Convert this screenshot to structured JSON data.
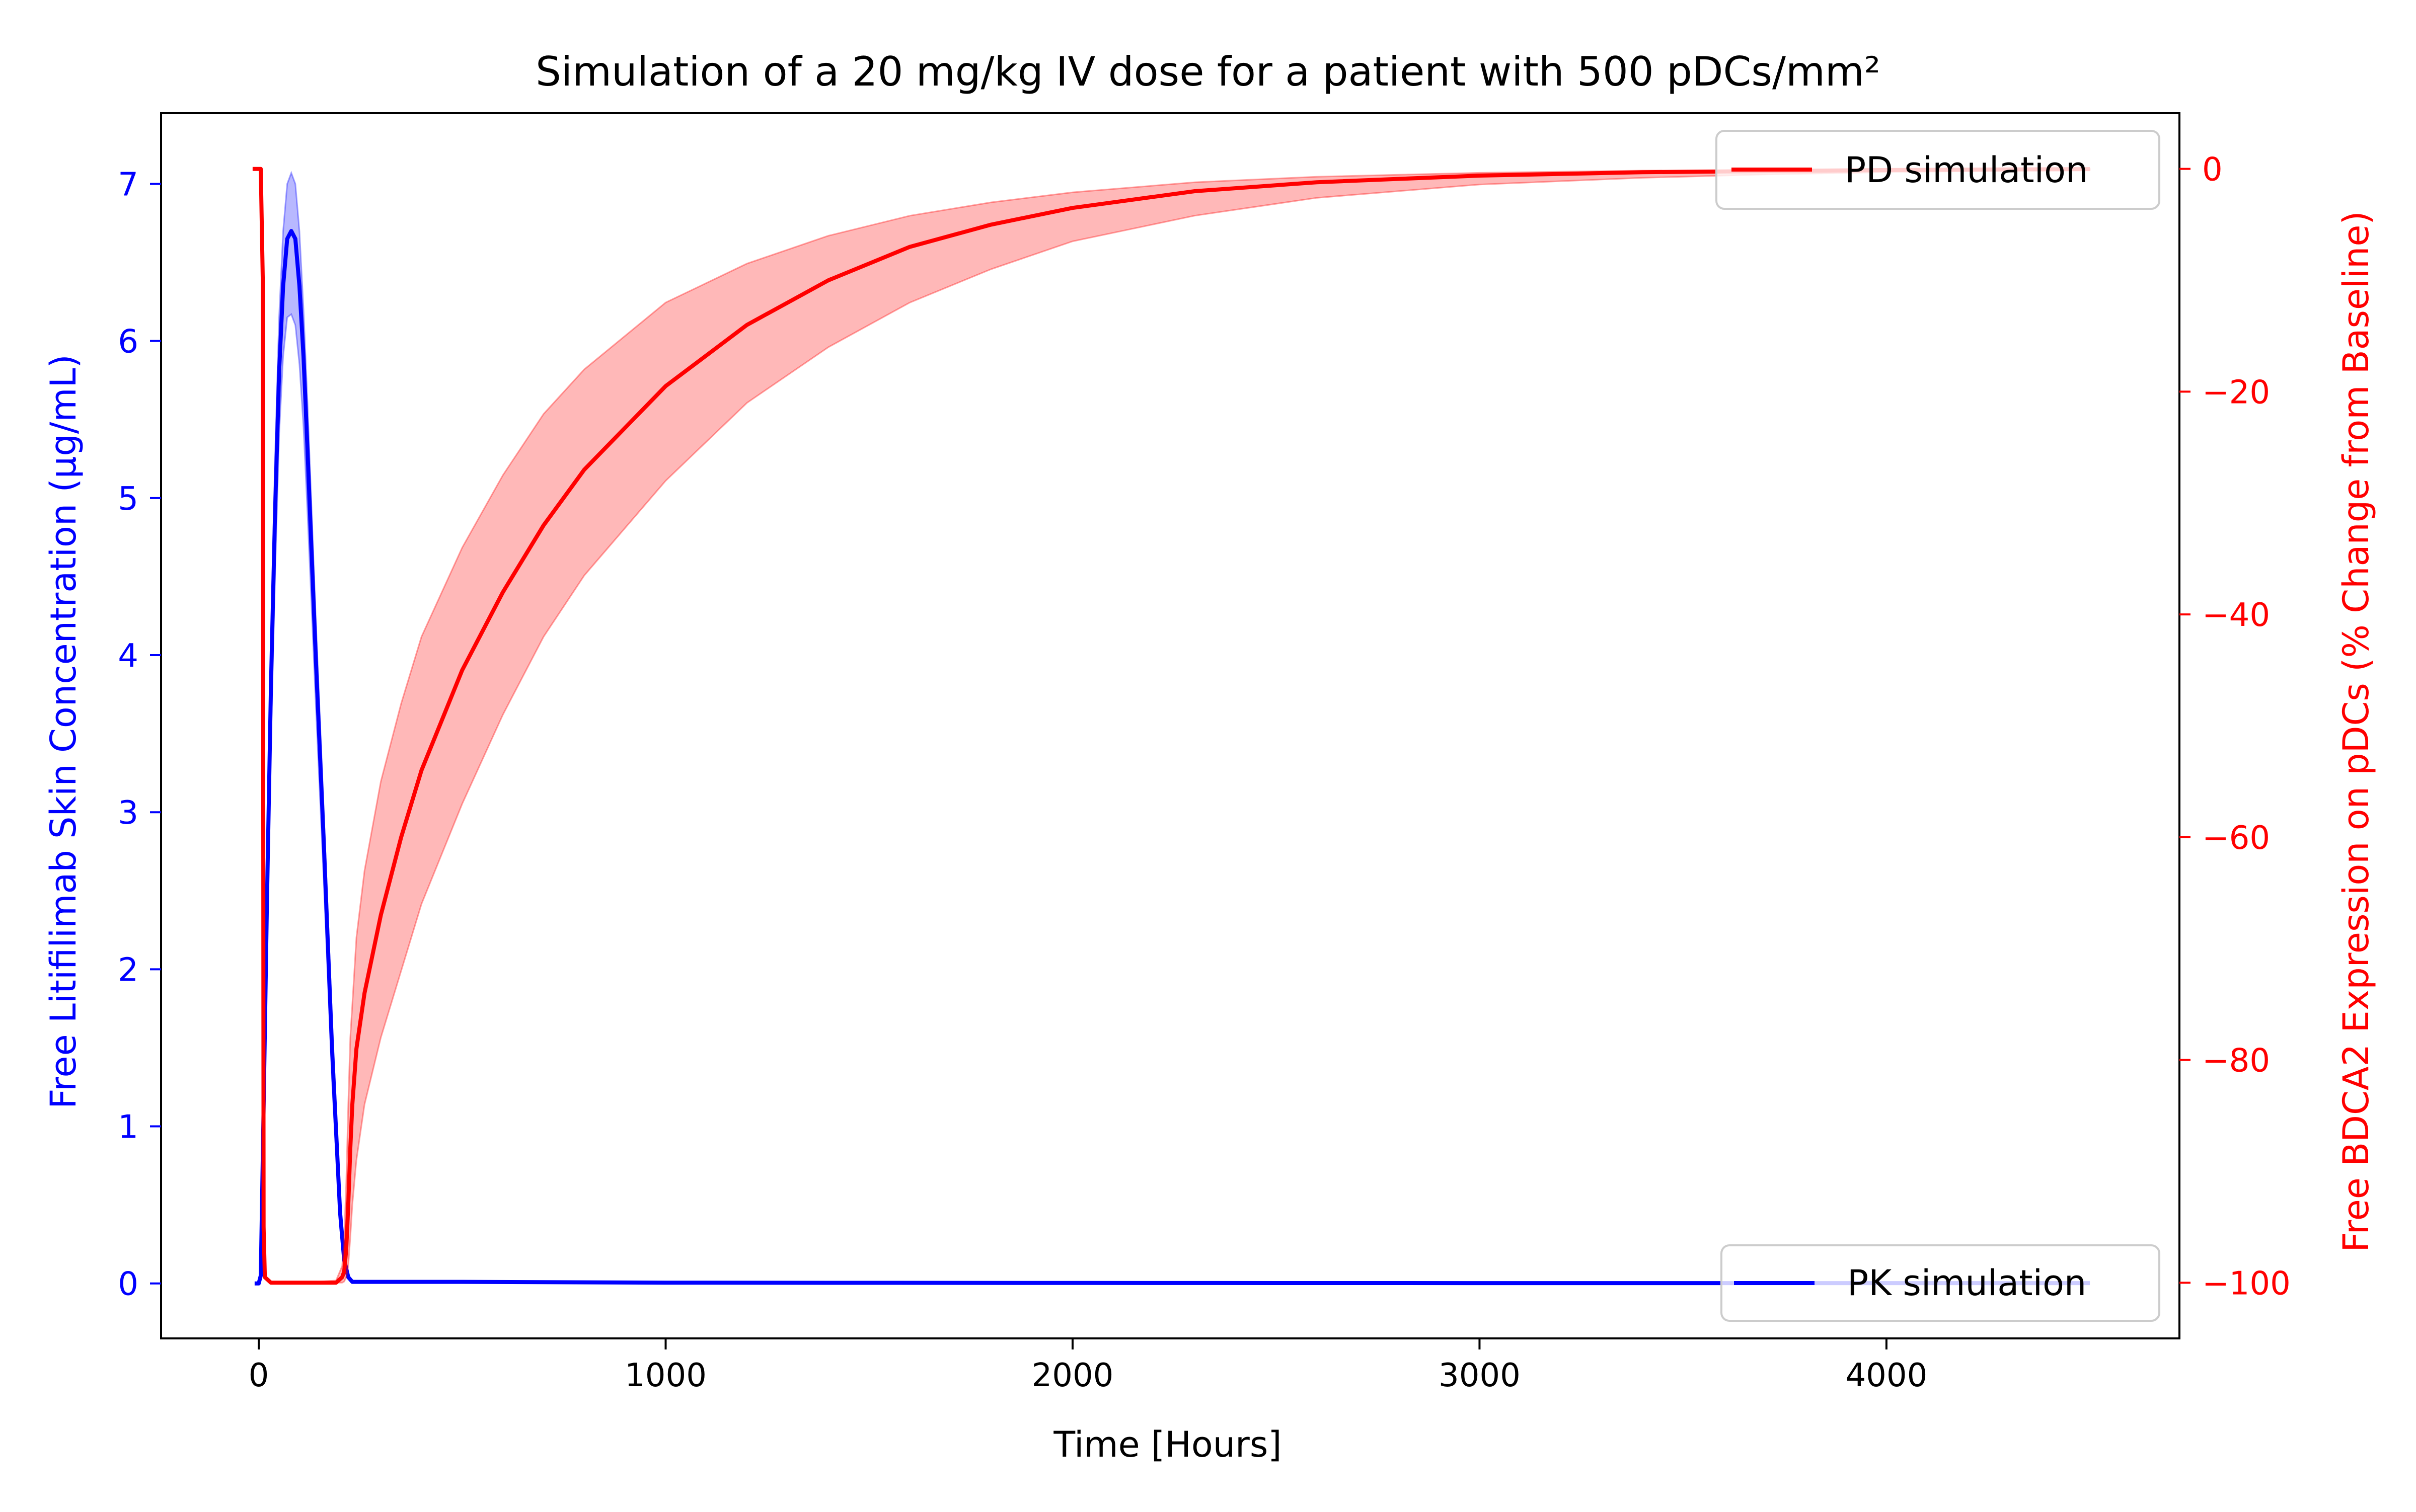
{
  "chart_data": {
    "type": "line",
    "title": "Simulation of a 20 mg/kg IV dose for a patient with 500 pDCs/mm²",
    "xlabel": "Time [Hours]",
    "ylabel_left": "Free Litifilimab Skin Concentration (μg/mL)",
    "ylabel_right": "Free BDCA2 Expression on pDCs (% Change from Baseline)",
    "xlim": [
      -240,
      4720
    ],
    "ylim_left": [
      -0.35,
      7.45
    ],
    "ylim_right": [
      -105,
      5
    ],
    "x_ticks": [
      0,
      1000,
      2000,
      3000,
      4000
    ],
    "x_tick_labels": [
      "0",
      "1000",
      "2000",
      "3000",
      "4000"
    ],
    "y_left_ticks": [
      0,
      1,
      2,
      3,
      4,
      5,
      6,
      7
    ],
    "y_left_tick_labels": [
      "0",
      "1",
      "2",
      "3",
      "4",
      "5",
      "6",
      "7"
    ],
    "y_right_ticks": [
      0,
      -20,
      -40,
      -60,
      -80,
      -100
    ],
    "y_right_tick_labels": [
      "0",
      "−20",
      "−40",
      "−60",
      "−80",
      "−100"
    ],
    "grid": false,
    "series": [
      {
        "name": "PK simulation",
        "axis": "left",
        "color": "#0000ff",
        "band_color": "#0000ff",
        "x": [
          -10,
          0,
          5,
          10,
          15,
          20,
          30,
          40,
          50,
          60,
          70,
          80,
          90,
          100,
          110,
          120,
          140,
          160,
          180,
          200,
          210,
          220,
          230,
          250,
          300,
          500,
          1000,
          2000,
          3000,
          4000,
          4500
        ],
        "y": [
          0,
          0,
          0.05,
          0.8,
          1.6,
          2.4,
          3.8,
          4.9,
          5.8,
          6.35,
          6.65,
          6.7,
          6.65,
          6.35,
          5.9,
          5.3,
          4.0,
          2.8,
          1.5,
          0.45,
          0.15,
          0.04,
          0.01,
          0.01,
          0.01,
          0.01,
          0.005,
          0.003,
          0.002,
          0.002,
          0.002
        ],
        "y_upper": [
          0,
          0,
          0.06,
          0.9,
          1.8,
          2.65,
          4.1,
          5.25,
          6.15,
          6.7,
          7.0,
          7.07,
          7.0,
          6.7,
          6.2,
          5.6,
          4.25,
          3.0,
          1.7,
          0.55,
          0.2,
          0.05,
          0.01,
          0.01,
          0.01,
          0.01,
          0.005,
          0.003,
          0.002,
          0.002,
          0.002
        ],
        "y_lower": [
          0,
          0,
          0.04,
          0.7,
          1.4,
          2.1,
          3.45,
          4.5,
          5.4,
          5.9,
          6.15,
          6.17,
          6.1,
          5.85,
          5.45,
          4.9,
          3.7,
          2.55,
          1.3,
          0.35,
          0.1,
          0.03,
          0.01,
          0.01,
          0.01,
          0.01,
          0.005,
          0.003,
          0.002,
          0.002,
          0.002
        ]
      },
      {
        "name": "PD simulation",
        "axis": "right",
        "color": "#ff0000",
        "band_color": "#ff0000",
        "x": [
          -15,
          0,
          5,
          10,
          12,
          15,
          30,
          60,
          100,
          150,
          190,
          205,
          210,
          215,
          220,
          225,
          230,
          240,
          260,
          300,
          350,
          400,
          500,
          600,
          700,
          800,
          1000,
          1200,
          1400,
          1600,
          1800,
          2000,
          2300,
          2600,
          3000,
          3400,
          3700,
          4000,
          4300,
          4500
        ],
        "y": [
          0,
          0,
          0,
          -10,
          -95,
          -99.5,
          -100,
          -100,
          -100,
          -100,
          -100,
          -99.5,
          -99,
          -97,
          -93,
          -88,
          -84,
          -79,
          -74,
          -67,
          -60,
          -54,
          -45,
          -38,
          -32,
          -27,
          -19.5,
          -14,
          -10,
          -7,
          -5,
          -3.5,
          -2,
          -1.2,
          -0.6,
          -0.3,
          -0.2,
          -0.1,
          -0.05,
          -0.02
        ],
        "y_upper": [
          0,
          0,
          0,
          -9,
          -94,
          -99.4,
          -99.9,
          -99.9,
          -99.9,
          -99.9,
          -99.8,
          -98.5,
          -96,
          -91,
          -84,
          -78,
          -75,
          -69,
          -63,
          -55,
          -48,
          -42,
          -34,
          -27.5,
          -22,
          -18,
          -12,
          -8.5,
          -6,
          -4.2,
          -3,
          -2.1,
          -1.2,
          -0.7,
          -0.35,
          -0.15,
          -0.1,
          -0.05,
          -0.02,
          -0.01
        ],
        "y_lower": [
          0,
          0,
          0,
          -11,
          -96,
          -99.6,
          -100,
          -100,
          -100,
          -100,
          -100,
          -100,
          -99.9,
          -99.5,
          -98.5,
          -96,
          -93,
          -89,
          -84,
          -78,
          -72,
          -66,
          -57,
          -49,
          -42,
          -36.5,
          -28,
          -21,
          -16,
          -12,
          -9,
          -6.5,
          -4.2,
          -2.6,
          -1.4,
          -0.8,
          -0.5,
          -0.3,
          -0.15,
          -0.1
        ]
      }
    ],
    "legends": [
      {
        "label": "PD simulation",
        "placement": "upper right",
        "color": "#ff0000"
      },
      {
        "label": "PK simulation",
        "placement": "lower right",
        "color": "#0000ff"
      }
    ],
    "colors": {
      "left_axis": "#0000ff",
      "right_axis": "#ff0000",
      "frame": "#000000"
    }
  }
}
